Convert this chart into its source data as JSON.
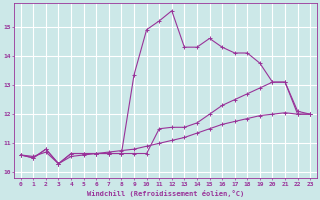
{
  "background_color": "#cce8e8",
  "grid_color": "#ffffff",
  "line_color": "#993399",
  "xlabel": "Windchill (Refroidissement éolien,°C)",
  "xlim": [
    -0.5,
    23.5
  ],
  "ylim": [
    9.8,
    15.8
  ],
  "yticks": [
    10,
    11,
    12,
    13,
    14,
    15
  ],
  "xticks": [
    0,
    1,
    2,
    3,
    4,
    5,
    6,
    7,
    8,
    9,
    10,
    11,
    12,
    13,
    14,
    15,
    16,
    17,
    18,
    19,
    20,
    21,
    22,
    23
  ],
  "series": [
    {
      "x": [
        0,
        1,
        2,
        3,
        4,
        5,
        6,
        7,
        8,
        9,
        10,
        11,
        12,
        13,
        14,
        15,
        16,
        17,
        18,
        19,
        20,
        21,
        22,
        23
      ],
      "y": [
        10.6,
        10.5,
        10.8,
        10.3,
        10.65,
        10.65,
        10.65,
        10.65,
        10.65,
        13.35,
        14.9,
        15.2,
        15.55,
        14.3,
        14.3,
        14.6,
        14.3,
        14.1,
        14.1,
        13.75,
        13.1,
        13.1,
        12.1,
        12.0
      ]
    },
    {
      "x": [
        0,
        1,
        2,
        3,
        4,
        5,
        6,
        7,
        8,
        9,
        10,
        11,
        12,
        13,
        14,
        15,
        16,
        17,
        18,
        19,
        20,
        21,
        22,
        23
      ],
      "y": [
        10.6,
        10.5,
        10.8,
        10.3,
        10.65,
        10.65,
        10.65,
        10.65,
        10.65,
        10.65,
        10.65,
        11.5,
        11.55,
        11.55,
        11.7,
        12.0,
        12.3,
        12.5,
        12.7,
        12.9,
        13.1,
        13.1,
        12.0,
        12.0
      ]
    },
    {
      "x": [
        0,
        1,
        2,
        3,
        4,
        5,
        6,
        7,
        8,
        9,
        10,
        11,
        12,
        13,
        14,
        15,
        16,
        17,
        18,
        19,
        20,
        21,
        22,
        23
      ],
      "y": [
        10.6,
        10.55,
        10.7,
        10.3,
        10.55,
        10.6,
        10.65,
        10.7,
        10.75,
        10.8,
        10.9,
        11.0,
        11.1,
        11.2,
        11.35,
        11.5,
        11.65,
        11.75,
        11.85,
        11.95,
        12.0,
        12.05,
        12.0,
        12.0
      ]
    }
  ]
}
